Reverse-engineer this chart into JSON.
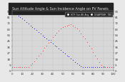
{
  "title": "Sun Altitude Angle & Sun Incidence Angle on PV Panels",
  "legend_labels": [
    "HOY: Sun Alt Ang",
    "DISAPPEAR: TBD"
  ],
  "legend_colors": [
    "#ff2222",
    "#0000cc"
  ],
  "bg_color": "#e8e8e8",
  "plot_bg": "#d8d8d8",
  "grid_color": "#bbbbbb",
  "blue_x": [
    0,
    2,
    4,
    6,
    8,
    10,
    12,
    14,
    16,
    18,
    20,
    22,
    24,
    26,
    28,
    30,
    32,
    34,
    36,
    38,
    40,
    42,
    44,
    46,
    48,
    50,
    52,
    54,
    56,
    58,
    60,
    62,
    64,
    66,
    68,
    70,
    72,
    74,
    76,
    78,
    80,
    82,
    84,
    86,
    88,
    90,
    92,
    94,
    96,
    98,
    100
  ],
  "blue_y": [
    90,
    88,
    86,
    83,
    81,
    78,
    76,
    73,
    71,
    68,
    66,
    63,
    61,
    58,
    56,
    53,
    51,
    48,
    46,
    43,
    41,
    38,
    36,
    33,
    31,
    28,
    26,
    23,
    21,
    18,
    16,
    13,
    11,
    8,
    6,
    5,
    5,
    5,
    5,
    5,
    5,
    5,
    5,
    5,
    5,
    5,
    5,
    5,
    5,
    5,
    5
  ],
  "red_x": [
    0,
    2,
    4,
    6,
    8,
    10,
    12,
    14,
    16,
    18,
    20,
    22,
    24,
    26,
    28,
    30,
    32,
    34,
    36,
    38,
    40,
    42,
    44,
    46,
    48,
    50,
    52,
    54,
    56,
    58,
    60,
    62,
    64,
    66,
    68,
    70,
    72,
    74,
    76,
    78,
    80,
    82,
    84,
    86,
    88,
    90,
    92,
    94,
    96,
    98,
    100
  ],
  "red_y": [
    5,
    5,
    5,
    5,
    5,
    5,
    5,
    5,
    5,
    8,
    11,
    14,
    18,
    22,
    26,
    30,
    34,
    38,
    42,
    46,
    50,
    54,
    57,
    60,
    63,
    65,
    67,
    68,
    69,
    70,
    68,
    66,
    63,
    60,
    56,
    52,
    48,
    43,
    38,
    33,
    28,
    23,
    18,
    13,
    9,
    6,
    5,
    5,
    5,
    5,
    5
  ],
  "ylim": [
    0,
    90
  ],
  "xlim": [
    0,
    100
  ],
  "yticks_right": [
    0,
    9,
    18,
    27,
    36,
    45,
    54,
    63,
    72,
    81,
    90
  ],
  "xtick_count": 10,
  "dot_size": 1.5,
  "title_fontsize": 3.5,
  "tick_fontsize": 2.8,
  "header_bg": "#222222",
  "header_text": "#dddddd"
}
